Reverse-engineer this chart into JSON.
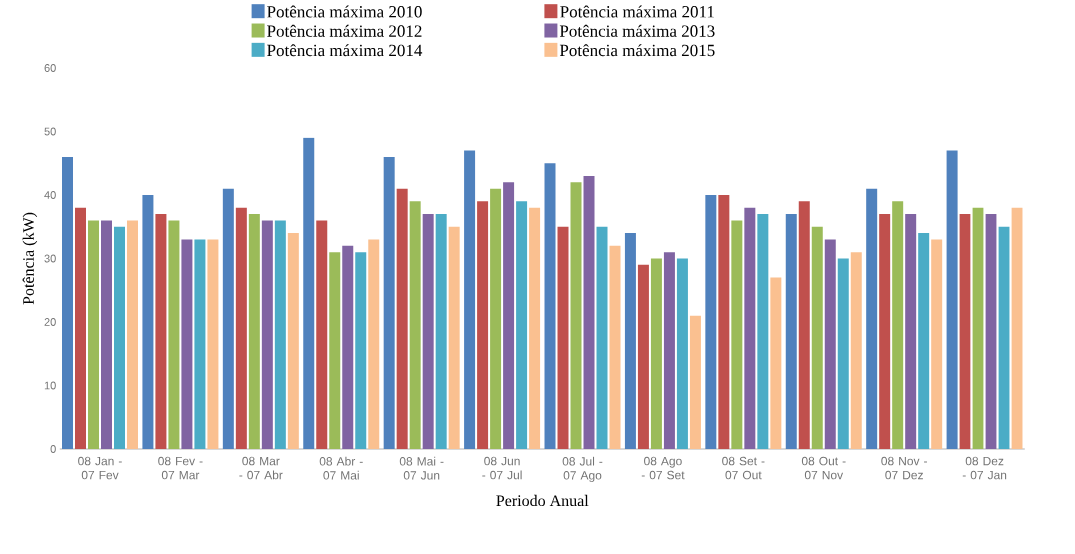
{
  "chart_data": {
    "type": "bar",
    "xlabel": "Periodo Anual",
    "ylabel": "Potência (kW)",
    "categories": [
      "08 Jan - 07 Fev",
      "08 Fev - 07 Mar",
      "08 Mar - 07 Abr",
      "08 Abr - 07 Mai",
      "08 Mai - 07 Jun",
      "08 Jun - 07 Jul",
      "08 Jul - 07 Ago",
      "08 Ago - 07 Set",
      "08 Set - 07 Out",
      "08 Out - 07 Nov",
      "08 Nov - 07 Dez",
      "08 Dez - 07 Jan"
    ],
    "series": [
      {
        "name": "Potência máxima 2010",
        "color": "#4f81bd",
        "values": [
          46,
          40,
          41,
          49,
          46,
          47,
          45,
          34,
          40,
          37,
          41,
          47
        ]
      },
      {
        "name": "Potência máxima 2011",
        "color": "#c0504d",
        "values": [
          38,
          37,
          38,
          36,
          41,
          39,
          35,
          29,
          40,
          39,
          37,
          37
        ]
      },
      {
        "name": "Potência máxima 2012",
        "color": "#9bbb59",
        "values": [
          36,
          36,
          37,
          31,
          39,
          41,
          42,
          30,
          36,
          35,
          39,
          38
        ]
      },
      {
        "name": "Potência máxima 2013",
        "color": "#8064a2",
        "values": [
          36,
          33,
          36,
          32,
          37,
          42,
          43,
          31,
          38,
          33,
          37,
          37
        ]
      },
      {
        "name": "Potência máxima 2014",
        "color": "#4bacc6",
        "values": [
          35,
          33,
          36,
          31,
          37,
          39,
          35,
          30,
          37,
          30,
          34,
          35
        ]
      },
      {
        "name": "Potência máxima 2015",
        "color": "#fac090",
        "values": [
          36,
          33,
          34,
          33,
          35,
          38,
          32,
          21,
          27,
          31,
          33,
          38
        ]
      }
    ],
    "ylim": [
      0,
      60
    ],
    "yticks": [
      0,
      10,
      20,
      30,
      40,
      50,
      60
    ],
    "legend": "top"
  }
}
